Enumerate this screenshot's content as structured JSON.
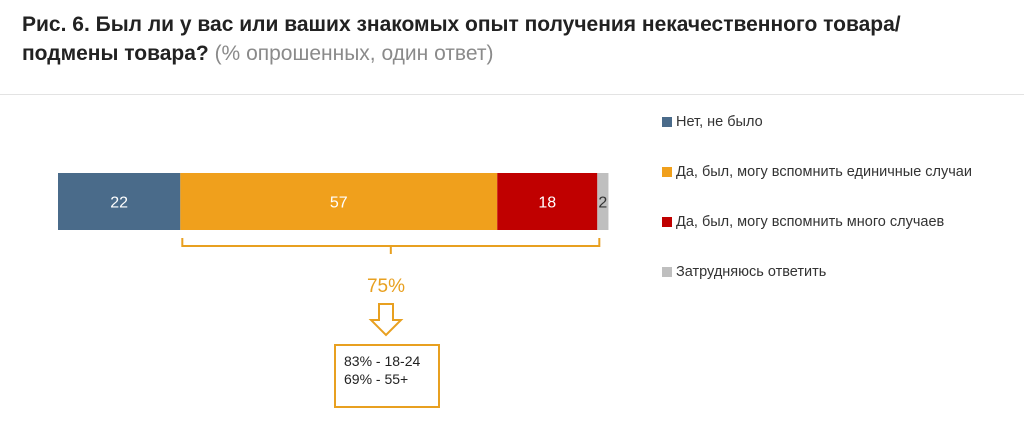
{
  "title": {
    "main": "Рис. 6. Был ли у вас или ваших знакомых опыт получения некачественного товара/подмены товара?",
    "sub": "(% опрошенных, один ответ)"
  },
  "chart_data": {
    "type": "bar",
    "orientation": "horizontal-stacked",
    "xlim": [
      0,
      100
    ],
    "series": [
      {
        "name": "Нет, не было",
        "value": 22,
        "color": "#4a6b8a",
        "label_color": "#ffffff"
      },
      {
        "name": "Да, был, могу вспомнить единичные случаи",
        "value": 57,
        "color": "#f0a01c",
        "label_color": "#ffffff"
      },
      {
        "name": "Да, был, могу вспомнить много случаев",
        "value": 18,
        "color": "#c00000",
        "label_color": "#ffffff"
      },
      {
        "name": "Затрудняюсь ответить",
        "value": 2,
        "color": "#bfbfbf",
        "label_color": "#333333"
      }
    ],
    "legend": "right",
    "bracket": {
      "from_series": 1,
      "to_series": 2,
      "label": "75%",
      "color": "#e8a020"
    },
    "callout": {
      "lines": [
        "83% - 18-24",
        "69% - 55+"
      ]
    }
  }
}
